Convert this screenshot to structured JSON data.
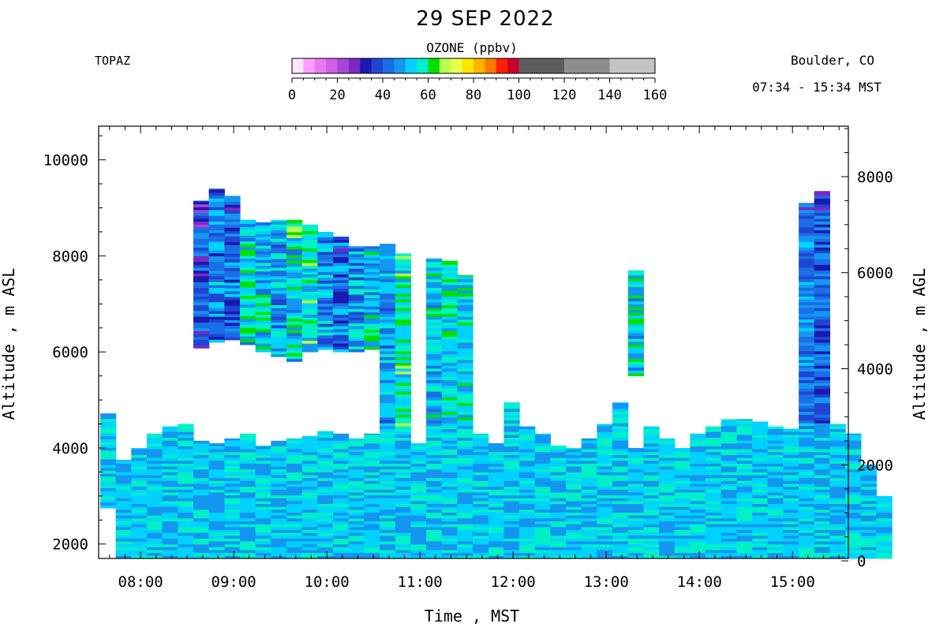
{
  "chart_data": {
    "type": "heatmap",
    "title": "29 SEP 2022",
    "instrument": "TOPAZ",
    "location": "Boulder, CO",
    "time_range": "07:34 - 15:34 MST",
    "colorbar": {
      "label": "OZONE (ppbv)",
      "min": 0,
      "max": 160,
      "ticks": [
        "0",
        "20",
        "40",
        "60",
        "80",
        "100",
        "120",
        "140",
        "160"
      ],
      "bins": [
        {
          "from": 0,
          "to": 5,
          "color": "#ffe6ff"
        },
        {
          "from": 5,
          "to": 10,
          "color": "#ff9cff"
        },
        {
          "from": 10,
          "to": 15,
          "color": "#e97cf2"
        },
        {
          "from": 15,
          "to": 20,
          "color": "#cf5fe6"
        },
        {
          "from": 20,
          "to": 25,
          "color": "#a746d8"
        },
        {
          "from": 25,
          "to": 30,
          "color": "#7c27c6"
        },
        {
          "from": 30,
          "to": 35,
          "color": "#1a1ab0"
        },
        {
          "from": 35,
          "to": 40,
          "color": "#1e46d2"
        },
        {
          "from": 40,
          "to": 45,
          "color": "#1a6ee6"
        },
        {
          "from": 45,
          "to": 50,
          "color": "#1496f0"
        },
        {
          "from": 50,
          "to": 55,
          "color": "#00d2ff"
        },
        {
          "from": 55,
          "to": 60,
          "color": "#00f0c8"
        },
        {
          "from": 60,
          "to": 65,
          "color": "#00e000"
        },
        {
          "from": 65,
          "to": 70,
          "color": "#b8ff4e"
        },
        {
          "from": 70,
          "to": 75,
          "color": "#e8ff4a"
        },
        {
          "from": 75,
          "to": 80,
          "color": "#ffe600"
        },
        {
          "from": 80,
          "to": 85,
          "color": "#ffb300"
        },
        {
          "from": 85,
          "to": 90,
          "color": "#ff7a00"
        },
        {
          "from": 90,
          "to": 95,
          "color": "#ff1e00"
        },
        {
          "from": 95,
          "to": 100,
          "color": "#c8002a"
        },
        {
          "from": 100,
          "to": 120,
          "color": "#5e5e5e"
        },
        {
          "from": 120,
          "to": 140,
          "color": "#8e8e8e"
        },
        {
          "from": 140,
          "to": 160,
          "color": "#c4c4c4"
        }
      ]
    },
    "xlabel": "Time , MST",
    "ylabel_left": "Altitude , m ASL",
    "ylabel_right": "Altitude , m AGL",
    "x_ticks": [
      "08:00",
      "09:00",
      "10:00",
      "11:00",
      "12:00",
      "13:00",
      "14:00",
      "15:00"
    ],
    "y_ticks_left": [
      "2000",
      "4000",
      "6000",
      "8000",
      "10000"
    ],
    "y_ticks_right": [
      "0",
      "2000",
      "4000",
      "6000",
      "8000"
    ],
    "xlim_hours": [
      7.55,
      15.6
    ],
    "ylim_m_asl": [
      1700,
      10700
    ],
    "surface_offset_m": 1650,
    "profile_interval_min": 10,
    "profiles": [
      {
        "time": "07:39",
        "low": [
          2750,
          4720
        ]
      },
      {
        "time": "07:49",
        "low": [
          1700,
          3750
        ]
      },
      {
        "time": "07:59",
        "low": [
          1700,
          4000
        ]
      },
      {
        "time": "08:09",
        "low": [
          1700,
          4300
        ]
      },
      {
        "time": "08:19",
        "low": [
          1700,
          4450
        ]
      },
      {
        "time": "08:29",
        "low": [
          1700,
          4500
        ]
      },
      {
        "time": "08:39",
        "low": [
          1700,
          4150
        ],
        "high": [
          6080,
          9150
        ],
        "o3_high": 38
      },
      {
        "time": "08:49",
        "low": [
          1700,
          4100
        ],
        "high": [
          6200,
          9400
        ],
        "o3_high": 45
      },
      {
        "time": "08:59",
        "low": [
          1700,
          4200
        ],
        "high": [
          6250,
          9250
        ],
        "o3_high": 42
      },
      {
        "time": "09:09",
        "low": [
          1700,
          4300
        ],
        "high": [
          6150,
          8750
        ],
        "o3_high": 54
      },
      {
        "time": "09:19",
        "low": [
          1700,
          4050
        ],
        "high": [
          6000,
          8700
        ],
        "o3_high": 52
      },
      {
        "time": "09:29",
        "low": [
          1700,
          4150
        ],
        "high": [
          5900,
          8750
        ],
        "o3_high": 50
      },
      {
        "time": "09:39",
        "low": [
          1700,
          4200
        ],
        "high": [
          5800,
          8750
        ],
        "o3_high": 55
      },
      {
        "time": "09:49",
        "low": [
          1700,
          4250
        ],
        "high": [
          6000,
          8650
        ],
        "o3_high": 56
      },
      {
        "time": "09:59",
        "low": [
          1700,
          4350
        ],
        "high": [
          6050,
          8500
        ],
        "o3_high": 48
      },
      {
        "time": "10:09",
        "low": [
          1700,
          4300
        ],
        "high": [
          6000,
          8400
        ],
        "o3_high": 44
      },
      {
        "time": "10:19",
        "low": [
          1700,
          4200
        ],
        "high": [
          6000,
          8200
        ],
        "o3_high": 50
      },
      {
        "time": "10:29",
        "low": [
          1700,
          4300
        ],
        "high": [
          6050,
          8200
        ],
        "o3_high": 52
      },
      {
        "time": "10:39",
        "low": [
          1700,
          8250
        ],
        "o3_high": 48
      },
      {
        "time": "10:49",
        "low": [
          1700,
          8050
        ],
        "o3_high": 58
      },
      {
        "time": "10:59",
        "low": [
          1700,
          4100
        ]
      },
      {
        "time": "11:09",
        "low": [
          1700,
          7950
        ],
        "o3_high": 52
      },
      {
        "time": "11:19",
        "low": [
          1700,
          7900
        ],
        "o3_high": 55
      },
      {
        "time": "11:29",
        "low": [
          1700,
          7600
        ],
        "o3_high": 54
      },
      {
        "time": "11:39",
        "low": [
          1700,
          4300
        ]
      },
      {
        "time": "11:49",
        "low": [
          1700,
          4100
        ]
      },
      {
        "time": "11:59",
        "low": [
          1700,
          4950
        ]
      },
      {
        "time": "12:09",
        "low": [
          1700,
          4450
        ]
      },
      {
        "time": "12:19",
        "low": [
          1700,
          4300
        ]
      },
      {
        "time": "12:29",
        "low": [
          1700,
          4050
        ]
      },
      {
        "time": "12:39",
        "low": [
          1700,
          4000
        ]
      },
      {
        "time": "12:49",
        "low": [
          1700,
          4200
        ]
      },
      {
        "time": "12:59",
        "low": [
          1700,
          4500
        ]
      },
      {
        "time": "13:09",
        "low": [
          1700,
          4950
        ]
      },
      {
        "time": "13:19",
        "low": [
          1700,
          4000
        ],
        "high": [
          5500,
          7700
        ],
        "o3_high": 52
      },
      {
        "time": "13:29",
        "low": [
          1700,
          4450
        ]
      },
      {
        "time": "13:39",
        "low": [
          1700,
          4200
        ]
      },
      {
        "time": "13:49",
        "low": [
          1700,
          4000
        ]
      },
      {
        "time": "13:59",
        "low": [
          1700,
          4300
        ]
      },
      {
        "time": "14:09",
        "low": [
          1700,
          4450
        ]
      },
      {
        "time": "14:19",
        "low": [
          1700,
          4600
        ]
      },
      {
        "time": "14:29",
        "low": [
          1700,
          4600
        ]
      },
      {
        "time": "14:39",
        "low": [
          1700,
          4550
        ]
      },
      {
        "time": "14:49",
        "low": [
          1700,
          4450
        ]
      },
      {
        "time": "14:59",
        "low": [
          1700,
          4400
        ]
      },
      {
        "time": "15:09",
        "low": [
          1700,
          9100
        ],
        "o3_high": 44
      },
      {
        "time": "15:19",
        "low": [
          1700,
          9350
        ],
        "o3_high": 40
      },
      {
        "time": "15:29",
        "low": [
          1700,
          4500
        ]
      },
      {
        "time": "15:39",
        "low": [
          1700,
          4300
        ]
      },
      {
        "time": "15:49",
        "low": [
          1700,
          3650
        ]
      },
      {
        "time": "15:59",
        "low": [
          1700,
          3000
        ]
      }
    ],
    "o3_low_typical": 52
  }
}
